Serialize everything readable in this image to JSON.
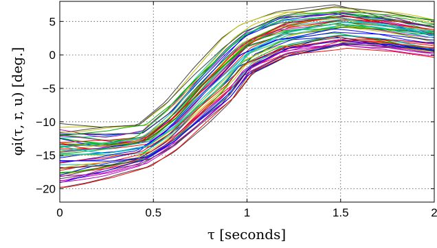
{
  "chart_data": {
    "type": "line",
    "title": "",
    "xlabel": "τ [seconds]",
    "ylabel": "φi(τ, r, u) [deg.]",
    "xlim": [
      0,
      2
    ],
    "ylim": [
      -22,
      8
    ],
    "xticks": [
      0,
      0.5,
      1,
      1.5,
      2
    ],
    "xtick_labels": [
      "0",
      "0.5",
      "1",
      "1.5",
      "2"
    ],
    "yticks": [
      -20,
      -15,
      -10,
      -5,
      0,
      5
    ],
    "ytick_labels": [
      "−20",
      "−15",
      "−10",
      "−5",
      "0",
      "5"
    ],
    "grid": true,
    "series_count": 60,
    "envelope": {
      "x": [
        0,
        0.25,
        0.45,
        0.6,
        0.75,
        0.9,
        1.0,
        1.2,
        1.5,
        1.75,
        2.0
      ],
      "upper": [
        -10.2,
        -10.8,
        -10.5,
        -7.0,
        -2.0,
        2.5,
        4.5,
        6.5,
        7.5,
        6.5,
        5.2
      ],
      "lower": [
        -19.8,
        -18.5,
        -17.0,
        -14.5,
        -11.0,
        -7.5,
        -3.5,
        -0.5,
        1.0,
        0.5,
        -0.5
      ]
    },
    "palette": [
      "#0000ff",
      "#00aa00",
      "#ff0000",
      "#00bfbf",
      "#bf00bf",
      "#bfbf00",
      "#404040"
    ]
  }
}
